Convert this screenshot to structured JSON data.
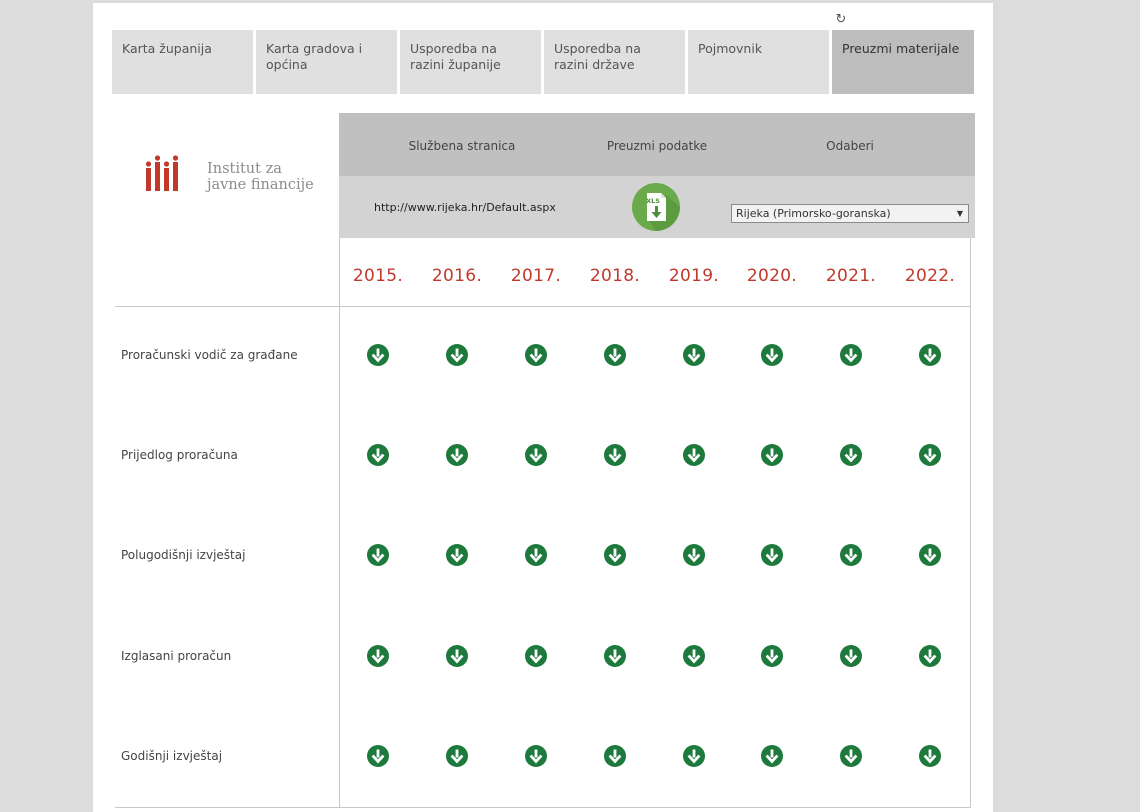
{
  "tabs": [
    {
      "label": "Karta županija",
      "active": false
    },
    {
      "label": "Karta gradova i općina",
      "active": false
    },
    {
      "label": "Usporedba na razini županije",
      "active": false
    },
    {
      "label": "Usporedba na razini države",
      "active": false
    },
    {
      "label": "Pojmovnik",
      "active": false
    },
    {
      "label": "Preuzmi materijale",
      "active": true
    }
  ],
  "logo": {
    "line1": "Institut za",
    "line2": "javne financije",
    "color": "#c0392b"
  },
  "panel": {
    "official_site_label": "Službena stranica",
    "download_data_label": "Preuzmi podatke",
    "select_label": "Odaberi",
    "url": "http://www.rijeka.hr/Default.aspx",
    "xls_icon_text": "XLS",
    "selected_option": "Rijeka (Primorsko-goranska)"
  },
  "years": [
    "2015.",
    "2016.",
    "2017.",
    "2018.",
    "2019.",
    "2020.",
    "2021.",
    "2022."
  ],
  "documents": [
    "Proračunski vodič za građane",
    "Prijedlog proračuna",
    "Polugodišnji izvještaj",
    "Izglasani proračun",
    "Godišnji izvještaj"
  ],
  "colors": {
    "accent_red": "#c0392b",
    "download_green": "#1e7a3c",
    "xls_green": "#6aaa4b"
  }
}
